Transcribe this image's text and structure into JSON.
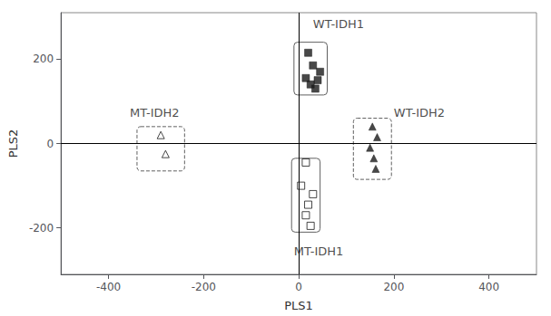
{
  "chart_data": {
    "type": "scatter",
    "xlabel": "PLS1",
    "ylabel": "PLS2",
    "xlim": [
      -500,
      500
    ],
    "ylim": [
      -310,
      310
    ],
    "xticks": [
      -400,
      -200,
      0,
      200,
      400
    ],
    "yticks": [
      -200,
      0,
      200
    ],
    "grid": false,
    "color": "#1a1a1a",
    "series": [
      {
        "x": [
          20,
          30,
          45,
          15,
          40,
          25,
          35
        ],
        "y": [
          215,
          185,
          170,
          155,
          150,
          140,
          130
        ],
        "marker": "square",
        "line_style": "solid",
        "box": {
          "x0": -10,
          "y0": 115,
          "width": 70,
          "height": 125
        }
      },
      {
        "x": [
          15,
          5,
          30,
          20,
          15,
          25
        ],
        "y": [
          -45,
          -100,
          -120,
          -145,
          -170,
          -195
        ],
        "marker": "square-open",
        "line_style": "solid",
        "box": {
          "x0": -15,
          "y0": -210,
          "width": 60,
          "height": 175
        }
      },
      {
        "x": [
          -290,
          -280
        ],
        "y": [
          20,
          -25
        ],
        "marker": "triangle-open",
        "line_style": "dashed",
        "box": {
          "x0": -340,
          "y0": -65,
          "width": 100,
          "height": 105
        }
      },
      {
        "x": [
          155,
          165,
          150,
          158,
          162
        ],
        "y": [
          40,
          15,
          -10,
          -35,
          -60
        ],
        "marker": "triangle",
        "line_style": "dashed",
        "box": {
          "x0": 115,
          "y0": -85,
          "width": 80,
          "height": 145
        }
      }
    ],
    "annotations": [
      {
        "text": "WT-IDH1",
        "x": 30,
        "y": 270
      },
      {
        "text": "MT-IDH1",
        "x": -10,
        "y": -270
      },
      {
        "text": "MT-IDH2",
        "x": -355,
        "y": 60
      },
      {
        "text": "WT-IDH2",
        "x": 200,
        "y": 60
      }
    ]
  }
}
